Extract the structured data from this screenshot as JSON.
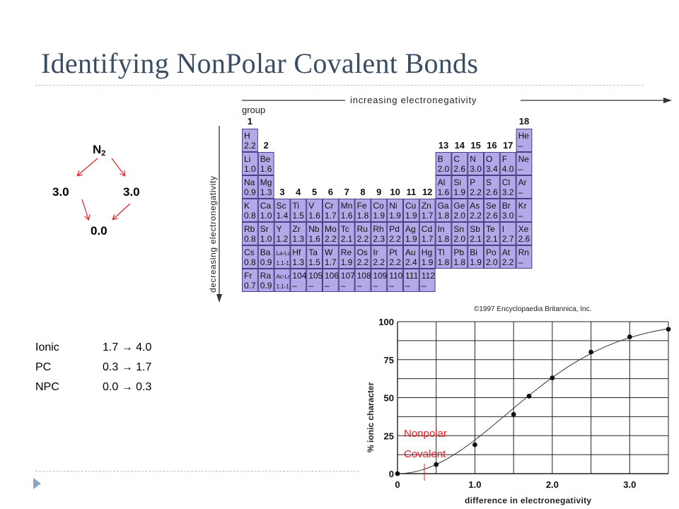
{
  "slide": {
    "title": "Identifying NonPolar Covalent Bonds",
    "accent": "#3a4d63"
  },
  "molecule": {
    "formula": "N",
    "subscript": "2",
    "left_value": "3.0",
    "right_value": "3.0",
    "difference": "0.0",
    "arrow_color": "#e0202a"
  },
  "ranges": [
    {
      "label": "Ionic",
      "range": "1.7 → 4.0"
    },
    {
      "label": "PC",
      "range": "0.3 → 1.7"
    },
    {
      "label": "NPC",
      "range": "0.0 → 0.3"
    }
  ],
  "periodic_table": {
    "top_label": "increasing electronegativity",
    "side_label": "decreasing electronegativity",
    "group_word": "group",
    "credit": "©1997 Encyclopaedia Britannica, Inc.",
    "cell_color": "#b5a8e8",
    "groups": [
      "1",
      "2",
      "3",
      "4",
      "5",
      "6",
      "7",
      "8",
      "9",
      "10",
      "11",
      "12",
      "13",
      "14",
      "15",
      "16",
      "17",
      "18"
    ],
    "elements": [
      {
        "s": "H",
        "v": "2.2",
        "g": 1,
        "p": 1
      },
      {
        "s": "He",
        "v": "–",
        "g": 18,
        "p": 1
      },
      {
        "s": "Li",
        "v": "1.0",
        "g": 1,
        "p": 2
      },
      {
        "s": "Be",
        "v": "1.6",
        "g": 2,
        "p": 2
      },
      {
        "s": "B",
        "v": "2.0",
        "g": 13,
        "p": 2
      },
      {
        "s": "C",
        "v": "2.6",
        "g": 14,
        "p": 2
      },
      {
        "s": "N",
        "v": "3.0",
        "g": 15,
        "p": 2
      },
      {
        "s": "O",
        "v": "3.4",
        "g": 16,
        "p": 2
      },
      {
        "s": "F",
        "v": "4.0",
        "g": 17,
        "p": 2
      },
      {
        "s": "Ne",
        "v": "–",
        "g": 18,
        "p": 2
      },
      {
        "s": "Na",
        "v": "0.9",
        "g": 1,
        "p": 3
      },
      {
        "s": "Mg",
        "v": "1.3",
        "g": 2,
        "p": 3
      },
      {
        "s": "Al",
        "v": "1.6",
        "g": 13,
        "p": 3
      },
      {
        "s": "Si",
        "v": "1.9",
        "g": 14,
        "p": 3
      },
      {
        "s": "P",
        "v": "2.2",
        "g": 15,
        "p": 3
      },
      {
        "s": "S",
        "v": "2.6",
        "g": 16,
        "p": 3
      },
      {
        "s": "Cl",
        "v": "3.2",
        "g": 17,
        "p": 3
      },
      {
        "s": "Ar",
        "v": "–",
        "g": 18,
        "p": 3
      },
      {
        "s": "K",
        "v": "0.8",
        "g": 1,
        "p": 4
      },
      {
        "s": "Ca",
        "v": "1.0",
        "g": 2,
        "p": 4
      },
      {
        "s": "Sc",
        "v": "1.4",
        "g": 3,
        "p": 4
      },
      {
        "s": "Ti",
        "v": "1.5",
        "g": 4,
        "p": 4
      },
      {
        "s": "V",
        "v": "1.6",
        "g": 5,
        "p": 4
      },
      {
        "s": "Cr",
        "v": "1.7",
        "g": 6,
        "p": 4
      },
      {
        "s": "Mn",
        "v": "1.6",
        "g": 7,
        "p": 4
      },
      {
        "s": "Fe",
        "v": "1.8",
        "g": 8,
        "p": 4
      },
      {
        "s": "Co",
        "v": "1.9",
        "g": 9,
        "p": 4
      },
      {
        "s": "Ni",
        "v": "1.9",
        "g": 10,
        "p": 4
      },
      {
        "s": "Cu",
        "v": "1.9",
        "g": 11,
        "p": 4
      },
      {
        "s": "Zn",
        "v": "1.7",
        "g": 12,
        "p": 4
      },
      {
        "s": "Ga",
        "v": "1.8",
        "g": 13,
        "p": 4
      },
      {
        "s": "Ge",
        "v": "2.0",
        "g": 14,
        "p": 4
      },
      {
        "s": "As",
        "v": "2.2",
        "g": 15,
        "p": 4
      },
      {
        "s": "Se",
        "v": "2.6",
        "g": 16,
        "p": 4
      },
      {
        "s": "Br",
        "v": "3.0",
        "g": 17,
        "p": 4
      },
      {
        "s": "Kr",
        "v": "–",
        "g": 18,
        "p": 4
      },
      {
        "s": "Rb",
        "v": "0.8",
        "g": 1,
        "p": 5
      },
      {
        "s": "Sr",
        "v": "1.0",
        "g": 2,
        "p": 5
      },
      {
        "s": "Y",
        "v": "1.2",
        "g": 3,
        "p": 5
      },
      {
        "s": "Zr",
        "v": "1.3",
        "g": 4,
        "p": 5
      },
      {
        "s": "Nb",
        "v": "1.6",
        "g": 5,
        "p": 5
      },
      {
        "s": "Mo",
        "v": "2.2",
        "g": 6,
        "p": 5
      },
      {
        "s": "Tc",
        "v": "2.1",
        "g": 7,
        "p": 5
      },
      {
        "s": "Ru",
        "v": "2.2",
        "g": 8,
        "p": 5
      },
      {
        "s": "Rh",
        "v": "2.3",
        "g": 9,
        "p": 5
      },
      {
        "s": "Pd",
        "v": "2.2",
        "g": 10,
        "p": 5
      },
      {
        "s": "Ag",
        "v": "1.9",
        "g": 11,
        "p": 5
      },
      {
        "s": "Cd",
        "v": "1.7",
        "g": 12,
        "p": 5
      },
      {
        "s": "In",
        "v": "1.8",
        "g": 13,
        "p": 5
      },
      {
        "s": "Sn",
        "v": "2.0",
        "g": 14,
        "p": 5
      },
      {
        "s": "Sb",
        "v": "2.1",
        "g": 15,
        "p": 5
      },
      {
        "s": "Te",
        "v": "2.1",
        "g": 16,
        "p": 5
      },
      {
        "s": "I",
        "v": "2.7",
        "g": 17,
        "p": 5
      },
      {
        "s": "Xe",
        "v": "2.6",
        "g": 18,
        "p": 5
      },
      {
        "s": "Cs",
        "v": "0.8",
        "g": 1,
        "p": 6
      },
      {
        "s": "Ba",
        "v": "0.9",
        "g": 2,
        "p": 6
      },
      {
        "s": "La-Lu",
        "v": "1.1-1.3",
        "g": 3,
        "p": 6
      },
      {
        "s": "Hf",
        "v": "1.3",
        "g": 4,
        "p": 6
      },
      {
        "s": "Ta",
        "v": "1.5",
        "g": 5,
        "p": 6
      },
      {
        "s": "W",
        "v": "1.7",
        "g": 6,
        "p": 6
      },
      {
        "s": "Re",
        "v": "1.9",
        "g": 7,
        "p": 6
      },
      {
        "s": "Os",
        "v": "2.2",
        "g": 8,
        "p": 6
      },
      {
        "s": "Ir",
        "v": "2.2",
        "g": 9,
        "p": 6
      },
      {
        "s": "Pt",
        "v": "2.2",
        "g": 10,
        "p": 6
      },
      {
        "s": "Au",
        "v": "2.4",
        "g": 11,
        "p": 6
      },
      {
        "s": "Hg",
        "v": "1.9",
        "g": 12,
        "p": 6
      },
      {
        "s": "Tl",
        "v": "1.8",
        "g": 13,
        "p": 6
      },
      {
        "s": "Pb",
        "v": "1.8",
        "g": 14,
        "p": 6
      },
      {
        "s": "Bi",
        "v": "1.9",
        "g": 15,
        "p": 6
      },
      {
        "s": "Po",
        "v": "2.0",
        "g": 16,
        "p": 6
      },
      {
        "s": "At",
        "v": "2.2",
        "g": 17,
        "p": 6
      },
      {
        "s": "Rn",
        "v": "–",
        "g": 18,
        "p": 6
      },
      {
        "s": "Fr",
        "v": "0.7",
        "g": 1,
        "p": 7
      },
      {
        "s": "Ra",
        "v": "0.9",
        "g": 2,
        "p": 7
      },
      {
        "s": "Ac-Lr",
        "v": "1.1-1.7",
        "g": 3,
        "p": 7
      },
      {
        "s": "104",
        "v": "–",
        "g": 4,
        "p": 7
      },
      {
        "s": "105",
        "v": "–",
        "g": 5,
        "p": 7
      },
      {
        "s": "106",
        "v": "–",
        "g": 6,
        "p": 7
      },
      {
        "s": "107",
        "v": "–",
        "g": 7,
        "p": 7
      },
      {
        "s": "108",
        "v": "–",
        "g": 8,
        "p": 7
      },
      {
        "s": "109",
        "v": "–",
        "g": 9,
        "p": 7
      },
      {
        "s": "110",
        "v": "–",
        "g": 10,
        "p": 7
      },
      {
        "s": "111",
        "v": "–",
        "g": 11,
        "p": 7
      },
      {
        "s": "112",
        "v": "–",
        "g": 12,
        "p": 7
      }
    ]
  },
  "ionic_chart": {
    "xlabel": "difference in electronegativity",
    "ylabel": "% ionic character",
    "xlim": [
      0,
      3.5
    ],
    "ylim": [
      0,
      100
    ],
    "x_ticks": [
      "0",
      "1.0",
      "2.0",
      "3.0"
    ],
    "y_ticks": [
      "0",
      "25",
      "50",
      "75",
      "100"
    ],
    "grid": true,
    "points": [
      [
        0,
        0
      ],
      [
        0.5,
        6
      ],
      [
        1.0,
        19
      ],
      [
        1.5,
        39
      ],
      [
        1.7,
        51
      ],
      [
        2.0,
        63
      ],
      [
        2.5,
        80
      ],
      [
        3.0,
        90
      ],
      [
        3.5,
        95
      ]
    ],
    "annotation": "Nonpolar Covalent",
    "annotation_color": "#e0202a"
  }
}
